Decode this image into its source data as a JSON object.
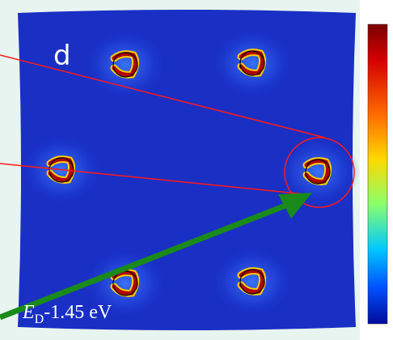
{
  "panel_label": "d",
  "energy_label": {
    "symbol": "E",
    "subscript": "D",
    "text": "-1.45 eV"
  }
}
